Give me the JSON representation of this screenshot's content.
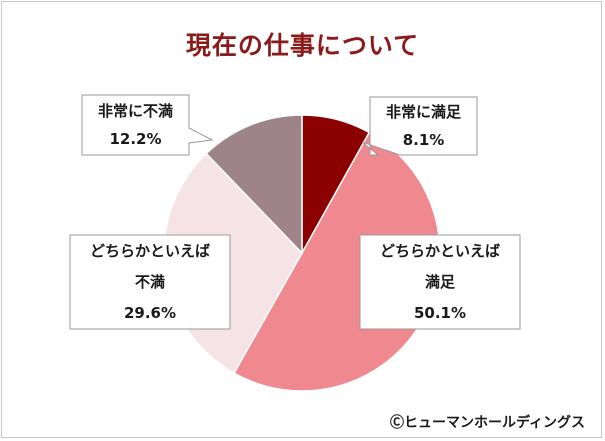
{
  "chart_data": {
    "type": "pie",
    "title": "現在の仕事について",
    "start_angle_deg": 0,
    "direction": "clockwise",
    "slices": [
      {
        "name": "非常に満足",
        "label_lines": [
          "非常に満足"
        ],
        "value": 8.1,
        "value_label": "8.1%",
        "color": "#8b0000"
      },
      {
        "name": "どちらかといえば満足",
        "label_lines": [
          "どちらかといえば",
          "満足"
        ],
        "value": 50.1,
        "value_label": "50.1%",
        "color": "#f08890"
      },
      {
        "name": "どちらかといえば不満",
        "label_lines": [
          "どちらかといえば",
          "不満"
        ],
        "value": 29.6,
        "value_label": "29.6%",
        "color": "#f5e3e6"
      },
      {
        "name": "非常に不満",
        "label_lines": [
          "非常に不満"
        ],
        "value": 12.2,
        "value_label": "12.2%",
        "color": "#9e8488"
      }
    ]
  },
  "copyright": "Ⓒヒューマンホールディングス"
}
